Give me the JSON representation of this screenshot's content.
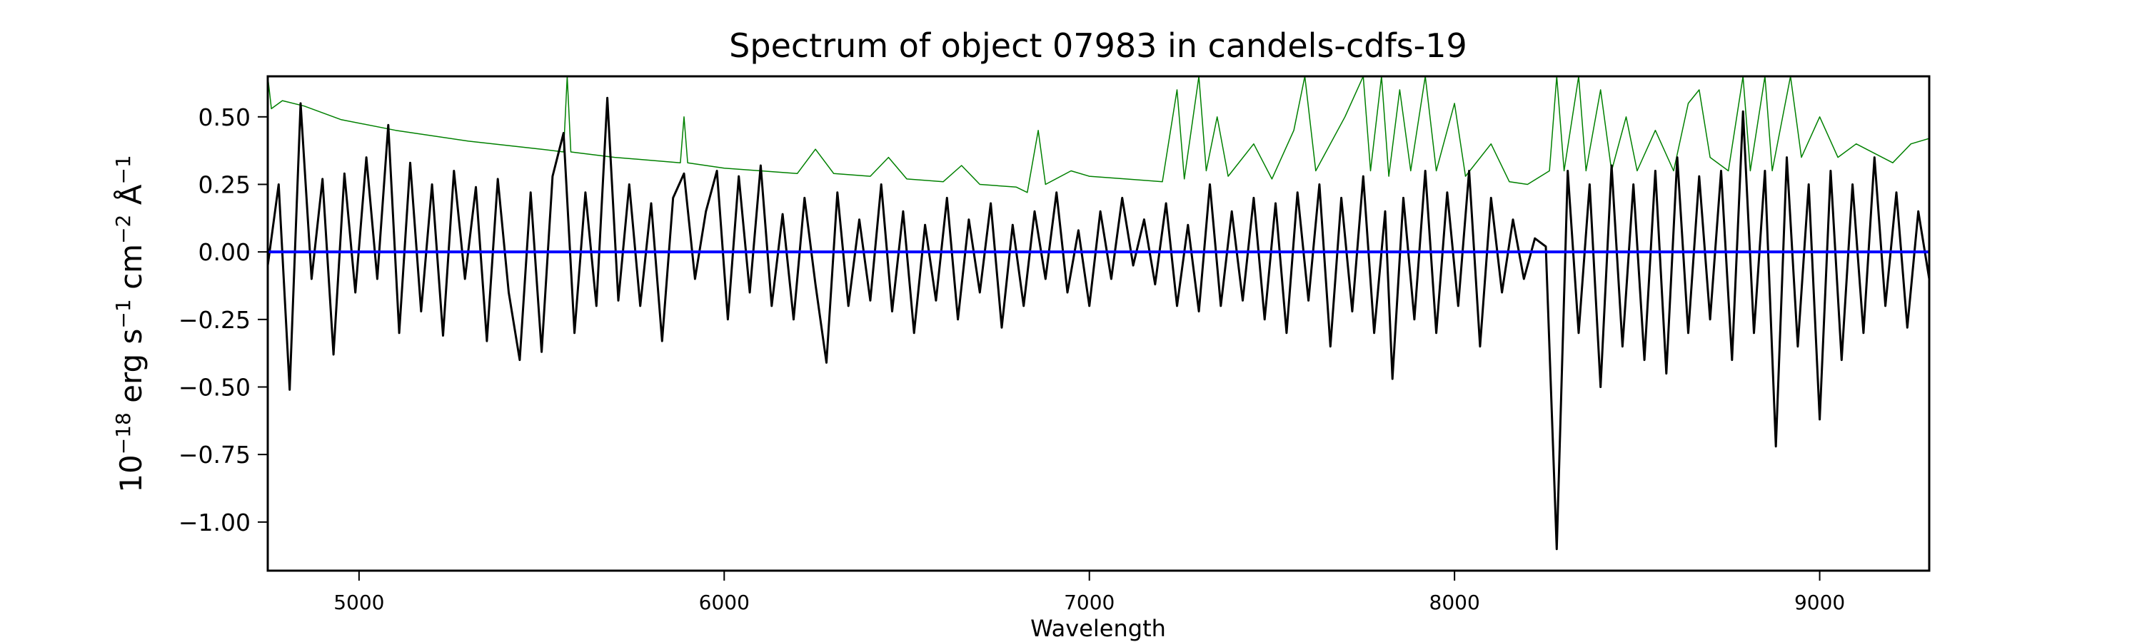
{
  "chart_data": {
    "type": "line",
    "title": "Spectrum of object 07983 in candels-cdfs-19",
    "xlabel": "Wavelength",
    "ylabel": "10^-18 erg s^-1 cm^-2 Å^-1",
    "ylabel_parts": {
      "base": "10",
      "exp1": "−18",
      "t1": " erg s",
      "exp2": "−1",
      "t2": " cm",
      "exp3": "−2",
      "t3": " Å",
      "exp4": "−1"
    },
    "xlim": [
      4750,
      9300
    ],
    "ylim": [
      -1.18,
      0.65
    ],
    "xticks": [
      5000,
      6000,
      7000,
      8000,
      9000
    ],
    "xtick_labels": [
      "5000",
      "6000",
      "7000",
      "8000",
      "9000"
    ],
    "yticks": [
      0.5,
      0.25,
      0.0,
      -0.25,
      -0.5,
      -0.75,
      -1.0
    ],
    "ytick_labels": [
      "0.50",
      "0.25",
      "0.00",
      "−0.25",
      "−0.50",
      "−0.75",
      "−1.00"
    ],
    "grid": false,
    "series": [
      {
        "color": "#008000",
        "points": [
          [
            4750,
            0.65
          ],
          [
            4760,
            0.53
          ],
          [
            4790,
            0.56
          ],
          [
            4850,
            0.54
          ],
          [
            4950,
            0.49
          ],
          [
            5100,
            0.45
          ],
          [
            5300,
            0.41
          ],
          [
            5500,
            0.38
          ],
          [
            5560,
            0.37
          ],
          [
            5570,
            0.65
          ],
          [
            5580,
            0.37
          ],
          [
            5700,
            0.35
          ],
          [
            5880,
            0.33
          ],
          [
            5890,
            0.5
          ],
          [
            5900,
            0.33
          ],
          [
            6000,
            0.31
          ],
          [
            6200,
            0.29
          ],
          [
            6250,
            0.38
          ],
          [
            6300,
            0.29
          ],
          [
            6400,
            0.28
          ],
          [
            6450,
            0.35
          ],
          [
            6500,
            0.27
          ],
          [
            6600,
            0.26
          ],
          [
            6650,
            0.32
          ],
          [
            6700,
            0.25
          ],
          [
            6800,
            0.24
          ],
          [
            6830,
            0.22
          ],
          [
            6860,
            0.45
          ],
          [
            6880,
            0.25
          ],
          [
            6950,
            0.3
          ],
          [
            7000,
            0.28
          ],
          [
            7100,
            0.27
          ],
          [
            7200,
            0.26
          ],
          [
            7240,
            0.6
          ],
          [
            7260,
            0.27
          ],
          [
            7300,
            0.65
          ],
          [
            7320,
            0.3
          ],
          [
            7350,
            0.5
          ],
          [
            7380,
            0.28
          ],
          [
            7450,
            0.4
          ],
          [
            7500,
            0.27
          ],
          [
            7560,
            0.45
          ],
          [
            7590,
            0.65
          ],
          [
            7620,
            0.3
          ],
          [
            7700,
            0.5
          ],
          [
            7750,
            0.65
          ],
          [
            7770,
            0.3
          ],
          [
            7800,
            0.65
          ],
          [
            7820,
            0.28
          ],
          [
            7850,
            0.6
          ],
          [
            7880,
            0.3
          ],
          [
            7920,
            0.65
          ],
          [
            7950,
            0.3
          ],
          [
            8000,
            0.55
          ],
          [
            8030,
            0.28
          ],
          [
            8100,
            0.4
          ],
          [
            8150,
            0.26
          ],
          [
            8200,
            0.25
          ],
          [
            8260,
            0.3
          ],
          [
            8280,
            0.65
          ],
          [
            8300,
            0.3
          ],
          [
            8340,
            0.65
          ],
          [
            8360,
            0.3
          ],
          [
            8400,
            0.6
          ],
          [
            8430,
            0.3
          ],
          [
            8470,
            0.5
          ],
          [
            8500,
            0.3
          ],
          [
            8550,
            0.45
          ],
          [
            8600,
            0.3
          ],
          [
            8640,
            0.55
          ],
          [
            8670,
            0.6
          ],
          [
            8700,
            0.35
          ],
          [
            8750,
            0.3
          ],
          [
            8790,
            0.65
          ],
          [
            8810,
            0.3
          ],
          [
            8850,
            0.65
          ],
          [
            8870,
            0.3
          ],
          [
            8920,
            0.65
          ],
          [
            8950,
            0.35
          ],
          [
            9000,
            0.5
          ],
          [
            9050,
            0.35
          ],
          [
            9100,
            0.4
          ],
          [
            9200,
            0.33
          ],
          [
            9250,
            0.4
          ],
          [
            9300,
            0.42
          ]
        ]
      },
      {
        "color": "#000000",
        "points": [
          [
            4750,
            -0.05
          ],
          [
            4780,
            0.25
          ],
          [
            4810,
            -0.51
          ],
          [
            4840,
            0.55
          ],
          [
            4870,
            -0.1
          ],
          [
            4900,
            0.27
          ],
          [
            4930,
            -0.38
          ],
          [
            4960,
            0.29
          ],
          [
            4990,
            -0.15
          ],
          [
            5020,
            0.35
          ],
          [
            5050,
            -0.1
          ],
          [
            5080,
            0.47
          ],
          [
            5110,
            -0.3
          ],
          [
            5140,
            0.33
          ],
          [
            5170,
            -0.22
          ],
          [
            5200,
            0.25
          ],
          [
            5230,
            -0.31
          ],
          [
            5260,
            0.3
          ],
          [
            5290,
            -0.1
          ],
          [
            5320,
            0.24
          ],
          [
            5350,
            -0.33
          ],
          [
            5380,
            0.27
          ],
          [
            5410,
            -0.15
          ],
          [
            5440,
            -0.4
          ],
          [
            5470,
            0.22
          ],
          [
            5500,
            -0.37
          ],
          [
            5530,
            0.28
          ],
          [
            5560,
            0.44
          ],
          [
            5590,
            -0.3
          ],
          [
            5620,
            0.22
          ],
          [
            5650,
            -0.2
          ],
          [
            5680,
            0.57
          ],
          [
            5710,
            -0.18
          ],
          [
            5740,
            0.25
          ],
          [
            5770,
            -0.2
          ],
          [
            5800,
            0.18
          ],
          [
            5830,
            -0.33
          ],
          [
            5860,
            0.2
          ],
          [
            5890,
            0.29
          ],
          [
            5920,
            -0.1
          ],
          [
            5950,
            0.15
          ],
          [
            5980,
            0.3
          ],
          [
            6010,
            -0.25
          ],
          [
            6040,
            0.28
          ],
          [
            6070,
            -0.15
          ],
          [
            6100,
            0.32
          ],
          [
            6130,
            -0.2
          ],
          [
            6160,
            0.14
          ],
          [
            6190,
            -0.25
          ],
          [
            6220,
            0.2
          ],
          [
            6250,
            -0.12
          ],
          [
            6280,
            -0.41
          ],
          [
            6310,
            0.22
          ],
          [
            6340,
            -0.2
          ],
          [
            6370,
            0.12
          ],
          [
            6400,
            -0.18
          ],
          [
            6430,
            0.25
          ],
          [
            6460,
            -0.22
          ],
          [
            6490,
            0.15
          ],
          [
            6520,
            -0.3
          ],
          [
            6550,
            0.1
          ],
          [
            6580,
            -0.18
          ],
          [
            6610,
            0.2
          ],
          [
            6640,
            -0.25
          ],
          [
            6670,
            0.12
          ],
          [
            6700,
            -0.15
          ],
          [
            6730,
            0.18
          ],
          [
            6760,
            -0.28
          ],
          [
            6790,
            0.1
          ],
          [
            6820,
            -0.2
          ],
          [
            6850,
            0.15
          ],
          [
            6880,
            -0.1
          ],
          [
            6910,
            0.22
          ],
          [
            6940,
            -0.15
          ],
          [
            6970,
            0.08
          ],
          [
            7000,
            -0.2
          ],
          [
            7030,
            0.15
          ],
          [
            7060,
            -0.1
          ],
          [
            7090,
            0.2
          ],
          [
            7120,
            -0.05
          ],
          [
            7150,
            0.12
          ],
          [
            7180,
            -0.12
          ],
          [
            7210,
            0.18
          ],
          [
            7240,
            -0.2
          ],
          [
            7270,
            0.1
          ],
          [
            7300,
            -0.22
          ],
          [
            7330,
            0.25
          ],
          [
            7360,
            -0.2
          ],
          [
            7390,
            0.15
          ],
          [
            7420,
            -0.18
          ],
          [
            7450,
            0.2
          ],
          [
            7480,
            -0.25
          ],
          [
            7510,
            0.18
          ],
          [
            7540,
            -0.3
          ],
          [
            7570,
            0.22
          ],
          [
            7600,
            -0.18
          ],
          [
            7630,
            0.25
          ],
          [
            7660,
            -0.35
          ],
          [
            7690,
            0.2
          ],
          [
            7720,
            -0.22
          ],
          [
            7750,
            0.28
          ],
          [
            7780,
            -0.3
          ],
          [
            7810,
            0.15
          ],
          [
            7830,
            -0.47
          ],
          [
            7860,
            0.2
          ],
          [
            7890,
            -0.25
          ],
          [
            7920,
            0.3
          ],
          [
            7950,
            -0.3
          ],
          [
            7980,
            0.22
          ],
          [
            8010,
            -0.2
          ],
          [
            8040,
            0.3
          ],
          [
            8070,
            -0.35
          ],
          [
            8100,
            0.2
          ],
          [
            8130,
            -0.15
          ],
          [
            8160,
            0.12
          ],
          [
            8190,
            -0.1
          ],
          [
            8220,
            0.05
          ],
          [
            8250,
            0.02
          ],
          [
            8280,
            -1.1
          ],
          [
            8310,
            0.3
          ],
          [
            8340,
            -0.3
          ],
          [
            8370,
            0.25
          ],
          [
            8400,
            -0.5
          ],
          [
            8430,
            0.32
          ],
          [
            8460,
            -0.35
          ],
          [
            8490,
            0.25
          ],
          [
            8520,
            -0.4
          ],
          [
            8550,
            0.3
          ],
          [
            8580,
            -0.45
          ],
          [
            8610,
            0.35
          ],
          [
            8640,
            -0.3
          ],
          [
            8670,
            0.28
          ],
          [
            8700,
            -0.25
          ],
          [
            8730,
            0.3
          ],
          [
            8760,
            -0.4
          ],
          [
            8790,
            0.52
          ],
          [
            8820,
            -0.3
          ],
          [
            8850,
            0.3
          ],
          [
            8880,
            -0.72
          ],
          [
            8910,
            0.35
          ],
          [
            8940,
            -0.35
          ],
          [
            8970,
            0.25
          ],
          [
            9000,
            -0.62
          ],
          [
            9030,
            0.3
          ],
          [
            9060,
            -0.4
          ],
          [
            9090,
            0.25
          ],
          [
            9120,
            -0.3
          ],
          [
            9150,
            0.35
          ],
          [
            9180,
            -0.2
          ],
          [
            9210,
            0.22
          ],
          [
            9240,
            -0.28
          ],
          [
            9270,
            0.15
          ],
          [
            9300,
            -0.1
          ]
        ]
      },
      {
        "color": "#0000ff",
        "points": [
          [
            4750,
            0
          ],
          [
            9300,
            0
          ]
        ]
      }
    ]
  }
}
